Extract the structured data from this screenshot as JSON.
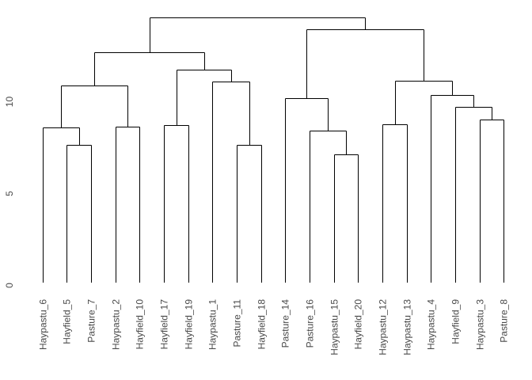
{
  "window": {
    "background": "#ffffff"
  },
  "chart_data": {
    "type": "dendrogram",
    "title": "",
    "xlabel": "",
    "ylabel": "",
    "orientation": "top-down",
    "grid": false,
    "legend": "none",
    "y_axis": {
      "ticks": [
        0,
        5,
        10
      ],
      "range": [
        0,
        15.5
      ]
    },
    "colors": {
      "line": "#000000",
      "text": "#4a4a4a",
      "background": "#ffffff"
    },
    "leaves": [
      "Haypastu_6",
      "Hayfield_5",
      "Pasture_7",
      "Haypastu_2",
      "Hayfield_10",
      "Hayfield_17",
      "Hayfield_19",
      "Haypastu_1",
      "Pasture_11",
      "Hayfield_18",
      "Pasture_14",
      "Pasture_16",
      "Haypastu_15",
      "Hayfield_20",
      "Haypastu_12",
      "Haypastu_13",
      "Haypastu_4",
      "Hayfield_9",
      "Haypastu_3",
      "Pasture_8"
    ],
    "tree": {
      "h": 14.4,
      "c": [
        {
          "h": 12.52,
          "c": [
            {
              "h": 10.71,
              "c": [
                {
                  "h": 8.43,
                  "c": [
                    {
                      "leaf": 0
                    },
                    {
                      "h": 7.5,
                      "c": [
                        {
                          "leaf": 1
                        },
                        {
                          "leaf": 2
                        }
                      ]
                    }
                  ]
                },
                {
                  "h": 8.49,
                  "c": [
                    {
                      "leaf": 3
                    },
                    {
                      "leaf": 4
                    }
                  ]
                }
              ]
            },
            {
              "h": 11.57,
              "c": [
                {
                  "h": 8.58,
                  "c": [
                    {
                      "leaf": 5
                    },
                    {
                      "leaf": 6
                    }
                  ]
                },
                {
                  "h": 10.92,
                  "c": [
                    {
                      "leaf": 7
                    },
                    {
                      "h": 7.48,
                      "c": [
                        {
                          "leaf": 8
                        },
                        {
                          "leaf": 9
                        }
                      ]
                    }
                  ]
                }
              ]
            }
          ]
        },
        {
          "h": 13.76,
          "c": [
            {
              "h": 10.02,
              "c": [
                {
                  "leaf": 10
                },
                {
                  "h": 8.26,
                  "c": [
                    {
                      "leaf": 11
                    },
                    {
                      "h": 6.97,
                      "c": [
                        {
                          "leaf": 12
                        },
                        {
                          "leaf": 13
                        }
                      ]
                    }
                  ]
                }
              ]
            },
            {
              "h": 10.97,
              "c": [
                {
                  "h": 8.6,
                  "c": [
                    {
                      "leaf": 14
                    },
                    {
                      "leaf": 15
                    }
                  ]
                },
                {
                  "h": 10.19,
                  "c": [
                    {
                      "leaf": 16
                    },
                    {
                      "h": 9.55,
                      "c": [
                        {
                          "leaf": 17
                        },
                        {
                          "h": 8.86,
                          "c": [
                            {
                              "leaf": 18
                            },
                            {
                              "leaf": 19
                            }
                          ]
                        }
                      ]
                    }
                  ]
                }
              ]
            }
          ]
        }
      ]
    }
  }
}
